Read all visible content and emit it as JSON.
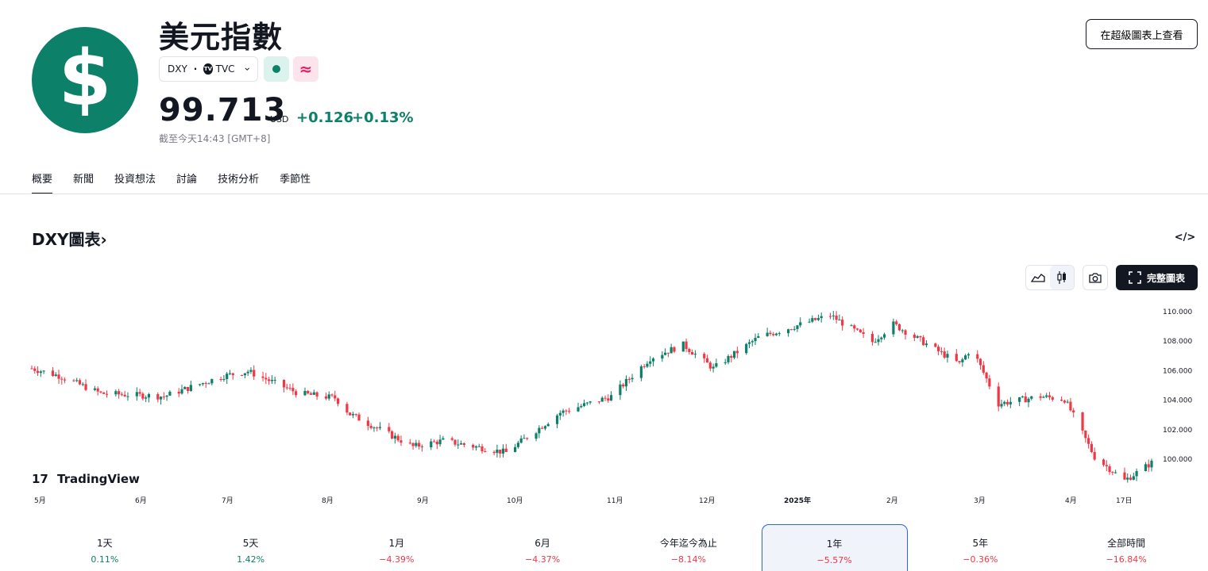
{
  "header": {
    "logo_symbol": "$",
    "title": "美元指數",
    "ticker": "DXY",
    "separator": "·",
    "exchange": "TVC",
    "status_wave_glyph": "≈",
    "price": "99.713",
    "currency": "USD",
    "change": "+0.126",
    "change_pct": "+0.13%",
    "as_of": "截至今天14:43 [GMT+8]",
    "super_chart_button": "在超級圖表上查看"
  },
  "tabs": [
    {
      "label": "概要",
      "active": true
    },
    {
      "label": "新聞"
    },
    {
      "label": "投資想法"
    },
    {
      "label": "討論"
    },
    {
      "label": "技術分析"
    },
    {
      "label": "季節性"
    }
  ],
  "chart_section": {
    "title": "DXY圖表",
    "title_chevron": "›",
    "embed_icon": "</>",
    "full_chart_label": "完整圖表",
    "watermark": "TradingView",
    "watermark_glyph": "17"
  },
  "colors": {
    "accent": "#0c8068",
    "up": "#0c8068",
    "down": "#f23645",
    "selected_border": "#2962ff"
  },
  "chart_data": {
    "type": "candlestick",
    "y_ticks": [
      "110.000",
      "108.000",
      "106.000",
      "104.000",
      "102.000",
      "100.000"
    ],
    "ylim": [
      98.0,
      110.2
    ],
    "x_ticks": [
      "5月",
      "6月",
      "7月",
      "8月",
      "9月",
      "10月",
      "11月",
      "12月",
      "2025年",
      "2月",
      "3月",
      "4月",
      "17日"
    ],
    "close_path": [
      {
        "date": "2024-04-22",
        "close": 106.1
      },
      {
        "date": "2024-05-01",
        "close": 105.6
      },
      {
        "date": "2024-05-15",
        "close": 104.4
      },
      {
        "date": "2024-06-05",
        "close": 104.2
      },
      {
        "date": "2024-06-25",
        "close": 105.6
      },
      {
        "date": "2024-07-03",
        "close": 105.9
      },
      {
        "date": "2024-07-20",
        "close": 104.4
      },
      {
        "date": "2024-08-01",
        "close": 104.1
      },
      {
        "date": "2024-08-06",
        "close": 103.0
      },
      {
        "date": "2024-08-27",
        "close": 100.8
      },
      {
        "date": "2024-09-06",
        "close": 101.2
      },
      {
        "date": "2024-09-27",
        "close": 100.4
      },
      {
        "date": "2024-10-15",
        "close": 103.1
      },
      {
        "date": "2024-11-01",
        "close": 104.2
      },
      {
        "date": "2024-11-14",
        "close": 106.8
      },
      {
        "date": "2024-11-25",
        "close": 107.7
      },
      {
        "date": "2024-12-05",
        "close": 106.1
      },
      {
        "date": "2024-12-20",
        "close": 108.2
      },
      {
        "date": "2025-01-13",
        "close": 109.7
      },
      {
        "date": "2025-01-27",
        "close": 107.9
      },
      {
        "date": "2025-02-03",
        "close": 109.1
      },
      {
        "date": "2025-02-25",
        "close": 106.4
      },
      {
        "date": "2025-03-01",
        "close": 107.5
      },
      {
        "date": "2025-03-10",
        "close": 103.7
      },
      {
        "date": "2025-03-24",
        "close": 104.2
      },
      {
        "date": "2025-04-01",
        "close": 104.0
      },
      {
        "date": "2025-04-04",
        "close": 102.9
      },
      {
        "date": "2025-04-11",
        "close": 100.1
      },
      {
        "date": "2025-04-21",
        "close": 98.5
      },
      {
        "date": "2025-04-30",
        "close": 99.7
      }
    ]
  },
  "periods": [
    {
      "label": "1天",
      "value": "0.11%",
      "dir": "pos"
    },
    {
      "label": "5天",
      "value": "1.42%",
      "dir": "pos"
    },
    {
      "label": "1月",
      "value": "−4.39%",
      "dir": "neg"
    },
    {
      "label": "6月",
      "value": "−4.37%",
      "dir": "neg"
    },
    {
      "label": "今年迄今為止",
      "value": "−8.14%",
      "dir": "neg"
    },
    {
      "label": "1年",
      "value": "−5.57%",
      "dir": "neg",
      "selected": true
    },
    {
      "label": "5年",
      "value": "−0.36%",
      "dir": "neg"
    },
    {
      "label": "全部時間",
      "value": "−16.84%",
      "dir": "neg"
    }
  ]
}
